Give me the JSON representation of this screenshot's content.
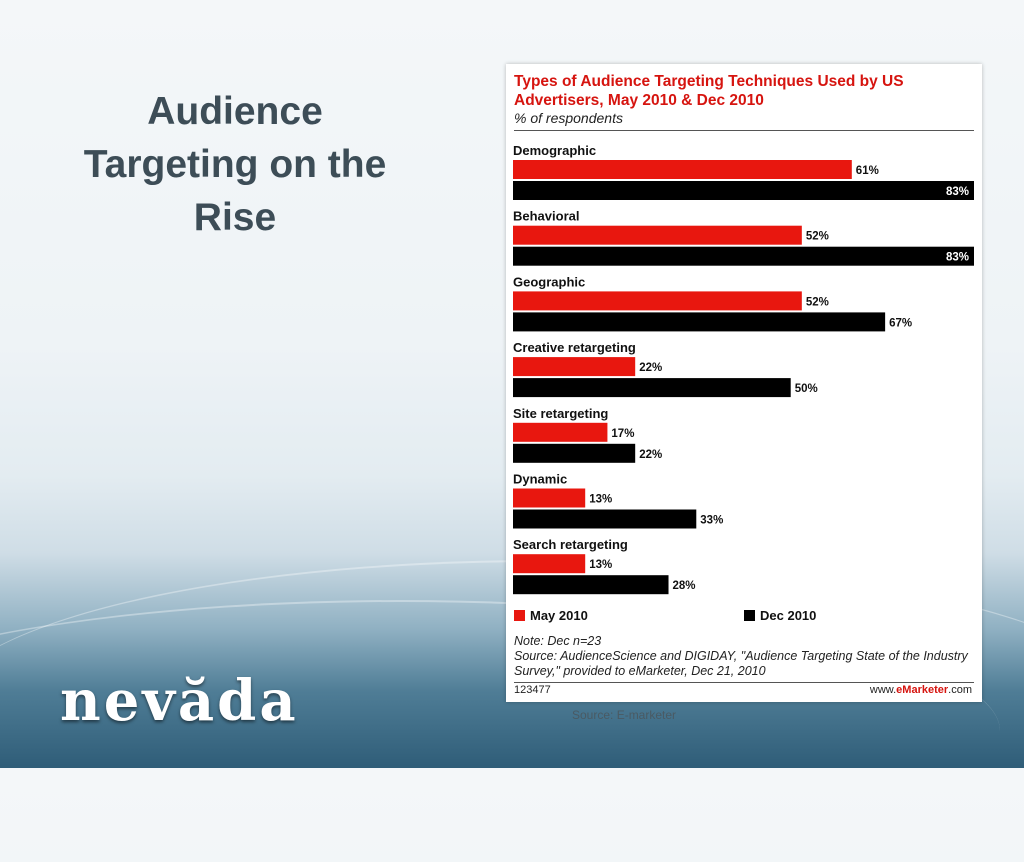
{
  "slide": {
    "title": "Audience Targeting on the Rise",
    "brand": "nevăda",
    "source_caption": "Source: E-marketer"
  },
  "chart": {
    "note": "Note: Dec n=23",
    "source": "Source: AudienceScience and DIGIDAY, \"Audience Targeting State of the Industry Survey,\" provided to eMarketer, Dec 21, 2010",
    "footer_id": "123477",
    "footer_site_prefix": "www.",
    "footer_site_brand": "eMarketer",
    "footer_site_suffix": ".com"
  },
  "colors": {
    "may": "#e8170f",
    "dec": "#000000",
    "title": "#d6140f"
  },
  "chart_data": {
    "type": "bar",
    "orientation": "horizontal",
    "title": "Types of Audience Targeting Techniques Used by US Advertisers, May 2010 & Dec 2010",
    "subtitle": "% of respondents",
    "categories": [
      "Demographic",
      "Behavioral",
      "Geographic",
      "Creative retargeting",
      "Site retargeting",
      "Dynamic",
      "Search retargeting"
    ],
    "series": [
      {
        "name": "May 2010",
        "values": [
          61,
          52,
          52,
          22,
          17,
          13,
          13
        ],
        "labels": [
          "61%",
          "52%",
          "52%",
          "22%",
          "17%",
          "13%",
          "13%"
        ]
      },
      {
        "name": "Dec 2010",
        "values": [
          83,
          83,
          67,
          50,
          22,
          33,
          28
        ],
        "labels": [
          "83%",
          "83%",
          "67%",
          "50%",
          "22%",
          "33%",
          "28%"
        ]
      }
    ],
    "xlim": [
      0,
      83
    ],
    "unit": "%",
    "legend": "bottom",
    "grid": false
  }
}
